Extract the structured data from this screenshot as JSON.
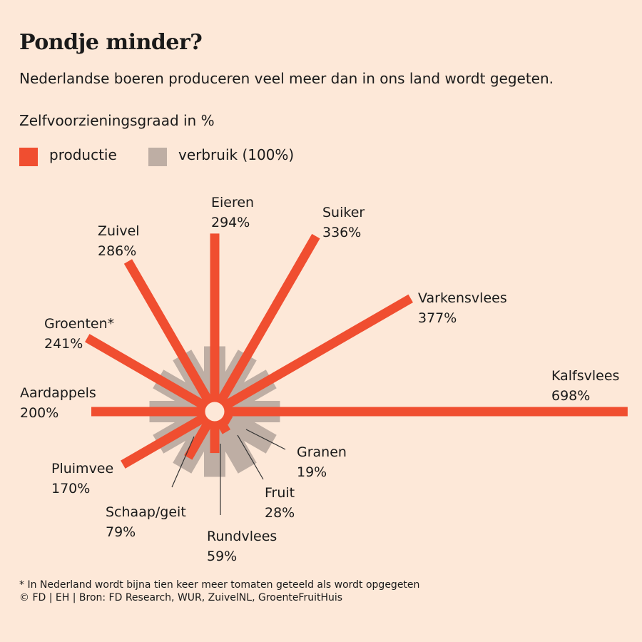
{
  "header": {
    "title": "Pondje minder?",
    "subtitle": "Nederlandse boeren produceren veel meer dan in ons land wordt gegeten.",
    "unit_label": "Zelfvoorzieningsgraad in %"
  },
  "legend": {
    "production_label": "productie",
    "consumption_label": "verbruik (100%)"
  },
  "footer": {
    "footnote": "* In Nederland wordt bijna tien keer meer tomaten geteeld als wordt opgegeten",
    "credit": "© FD | EH | Bron: FD Research, WUR, ZuivelNL, GroenteFruitHuis"
  },
  "colors": {
    "background": "#fde8d8",
    "production": "#f04e30",
    "consumption": "#beaea4",
    "text": "#1a1a1a"
  },
  "chart_data": {
    "type": "radial-bar",
    "reference_value": 100,
    "reference_label": "verbruik (100%)",
    "series": [
      {
        "name": "productie",
        "unit": "%"
      },
      {
        "name": "verbruik (100%)",
        "value": 100
      }
    ],
    "categories": [
      {
        "label": "Eieren",
        "value_label": "294%",
        "value": 294
      },
      {
        "label": "Suiker",
        "value_label": "336%",
        "value": 336
      },
      {
        "label": "Varkensvlees",
        "value_label": "377%",
        "value": 377
      },
      {
        "label": "Kalfsvlees",
        "value_label": "698%",
        "value": 698
      },
      {
        "label": "Granen",
        "value_label": "19%",
        "value": 19
      },
      {
        "label": "Fruit",
        "value_label": "28%",
        "value": 28
      },
      {
        "label": "Rundvlees",
        "value_label": "59%",
        "value": 59
      },
      {
        "label": "Schaap/geit",
        "value_label": "79%",
        "value": 79
      },
      {
        "label": "Pluimvee",
        "value_label": "170%",
        "value": 170
      },
      {
        "label": "Aardappels",
        "value_label": "200%",
        "value": 200
      },
      {
        "label": "Groenten*",
        "value_label": "241%",
        "value": 241
      },
      {
        "label": "Zuivel",
        "value_label": "286%",
        "value": 286
      }
    ]
  }
}
